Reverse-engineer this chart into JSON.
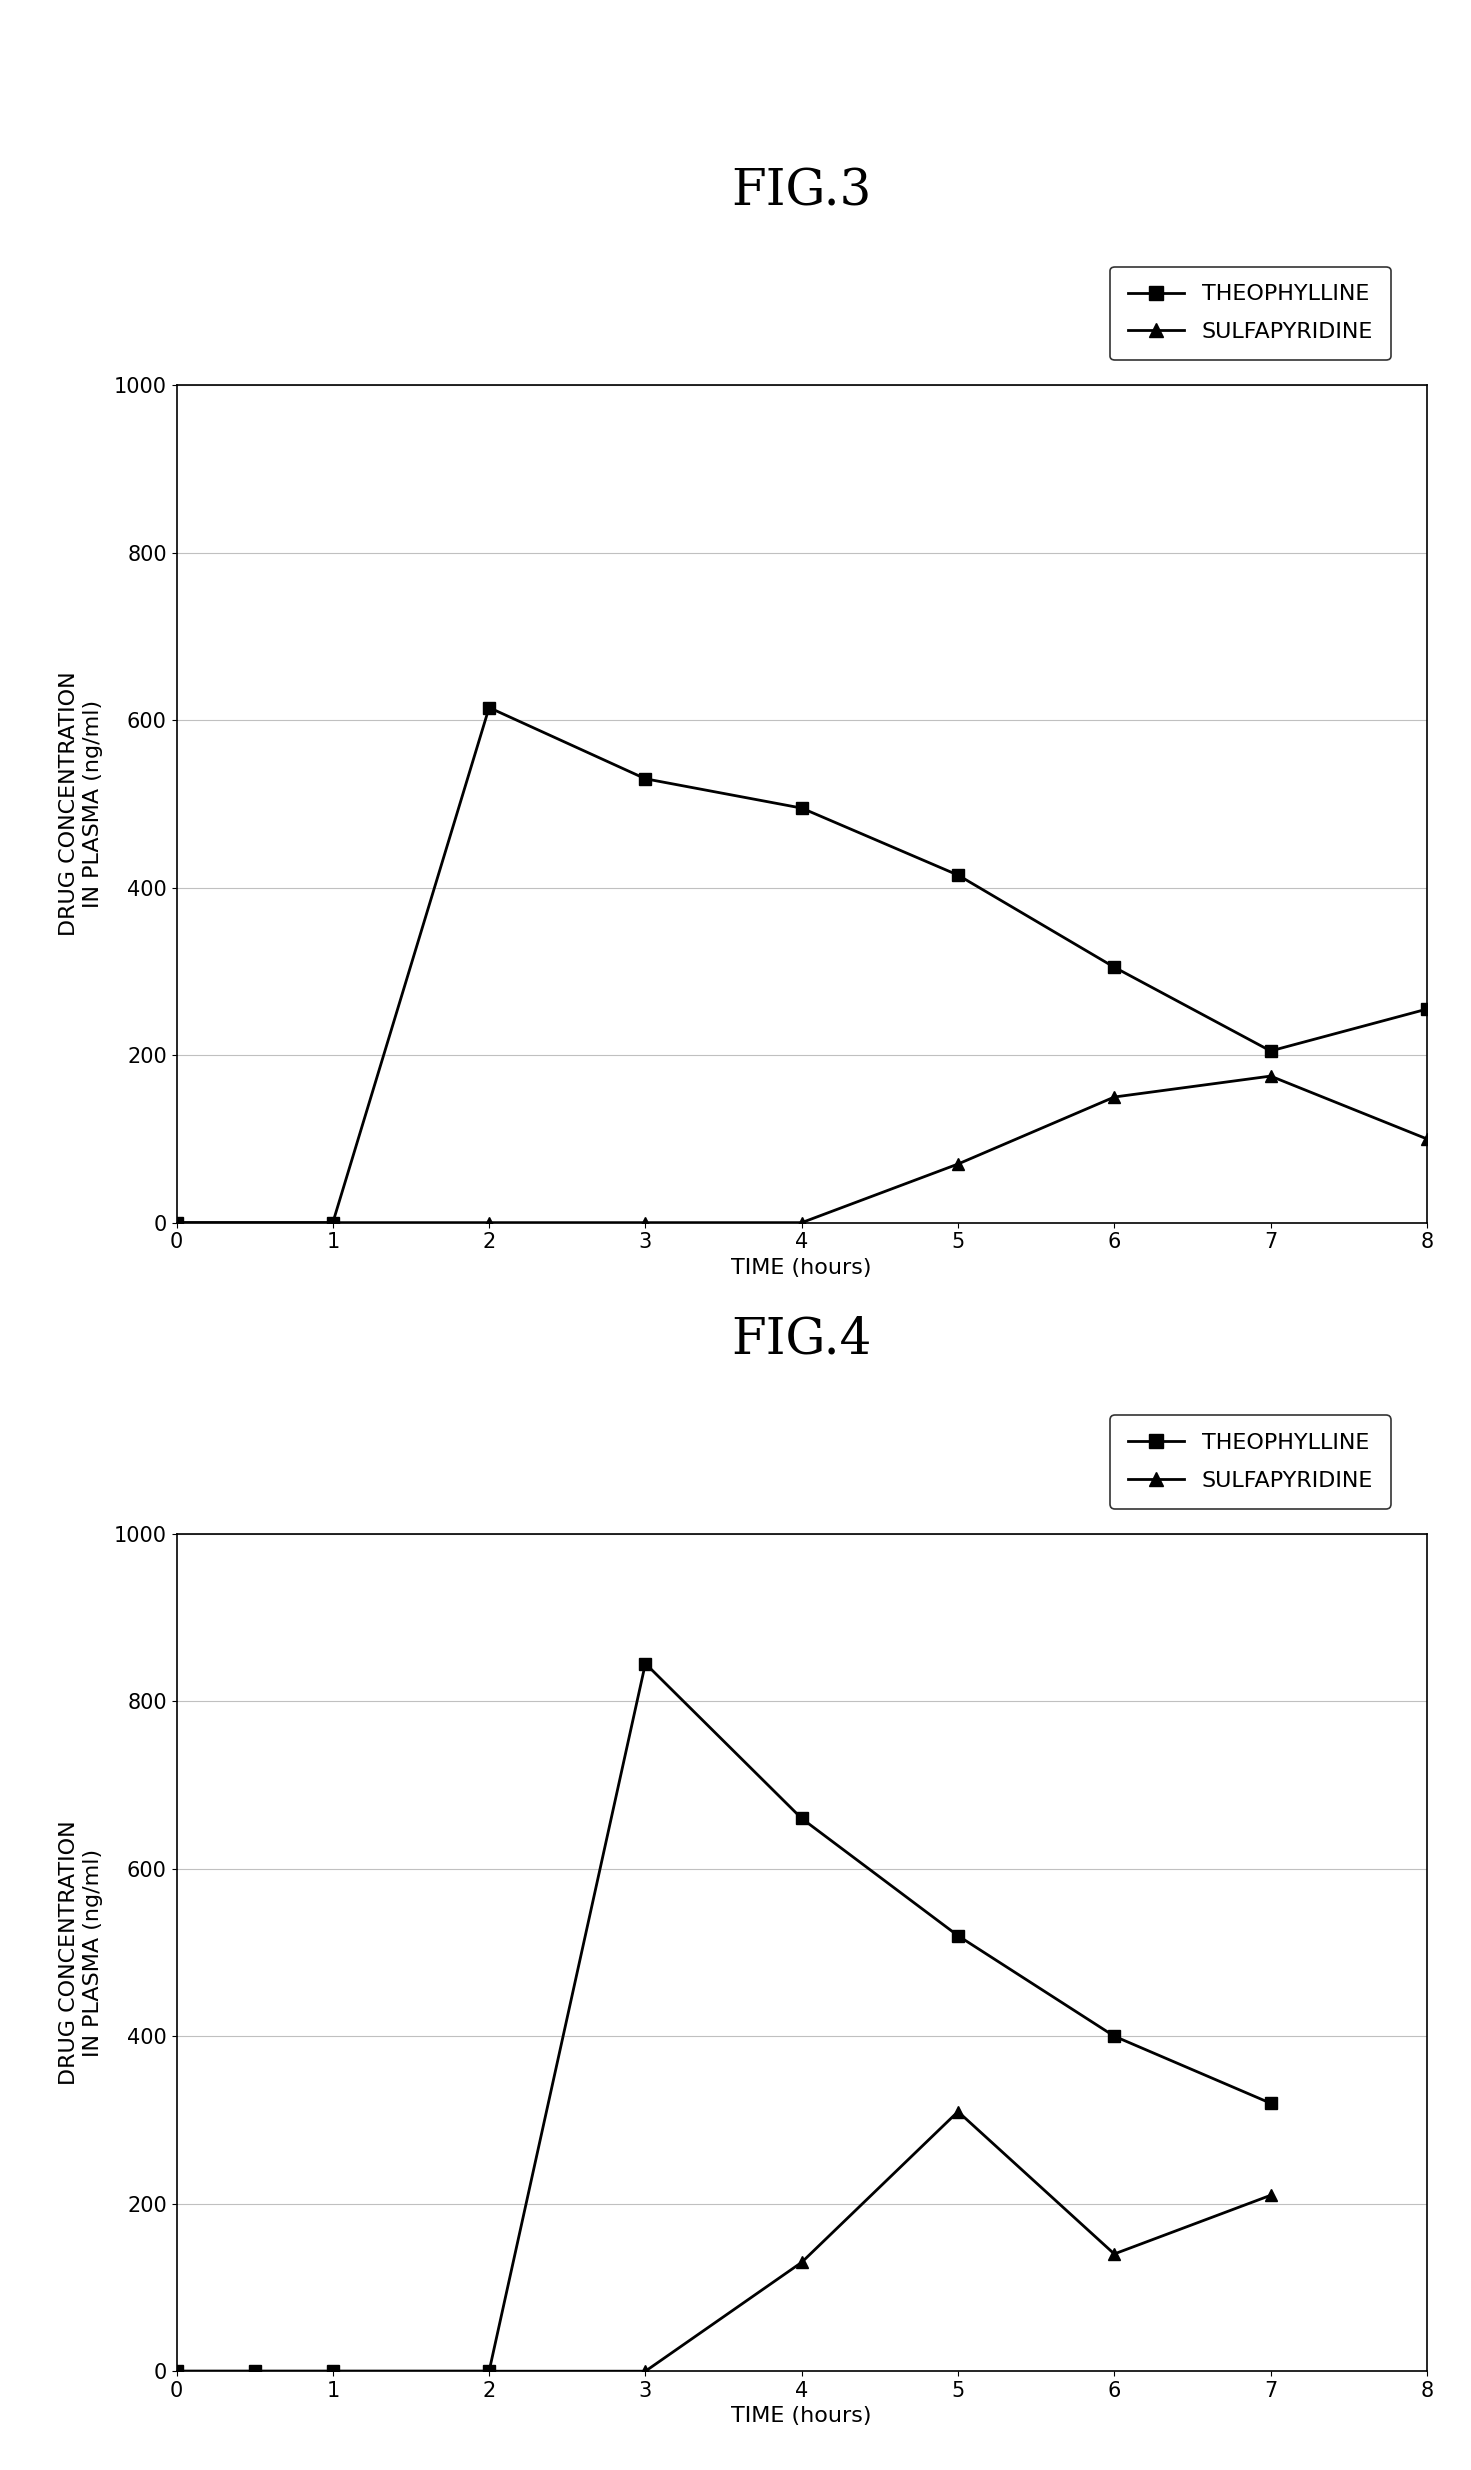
{
  "fig3": {
    "title": "FIG.3",
    "theophylline_x": [
      0,
      1,
      2,
      3,
      4,
      5,
      6,
      7,
      8
    ],
    "theophylline_y": [
      0,
      0,
      615,
      530,
      495,
      415,
      305,
      205,
      255
    ],
    "sulfapyridine_x": [
      0,
      1,
      2,
      3,
      4,
      5,
      6,
      7,
      8
    ],
    "sulfapyridine_y": [
      0,
      0,
      0,
      0,
      0,
      70,
      150,
      175,
      100
    ],
    "xlim": [
      0,
      8
    ],
    "ylim": [
      0,
      1000
    ],
    "xticks": [
      0,
      1,
      2,
      3,
      4,
      5,
      6,
      7,
      8
    ],
    "yticks": [
      0,
      200,
      400,
      600,
      800,
      1000
    ],
    "xlabel": "TIME (hours)",
    "ylabel": "DRUG CONCENTRATION\nIN PLASMA (ng/ml)"
  },
  "fig4": {
    "title": "FIG.4",
    "theophylline_x": [
      0,
      0.5,
      1,
      2,
      3,
      4,
      5,
      6,
      7
    ],
    "theophylline_y": [
      0,
      0,
      0,
      0,
      845,
      660,
      520,
      400,
      320
    ],
    "sulfapyridine_x": [
      0,
      0.5,
      1,
      2,
      3,
      4,
      5,
      6,
      7
    ],
    "sulfapyridine_y": [
      0,
      0,
      0,
      0,
      0,
      130,
      310,
      140,
      210
    ],
    "xlim": [
      0,
      8
    ],
    "ylim": [
      0,
      1000
    ],
    "xticks": [
      0,
      1,
      2,
      3,
      4,
      5,
      6,
      7,
      8
    ],
    "yticks": [
      0,
      200,
      400,
      600,
      800,
      1000
    ],
    "xlabel": "TIME (hours)",
    "ylabel": "DRUG CONCENTRATION\nIN PLASMA (ng/ml)"
  },
  "line_color": "#000000",
  "background_color": "#ffffff",
  "legend_theophylline": "THEOPHYLLINE",
  "legend_sulfapyridine": "SULFAPYRIDINE",
  "title_fontsize": 36,
  "label_fontsize": 16,
  "tick_fontsize": 15,
  "legend_fontsize": 16
}
